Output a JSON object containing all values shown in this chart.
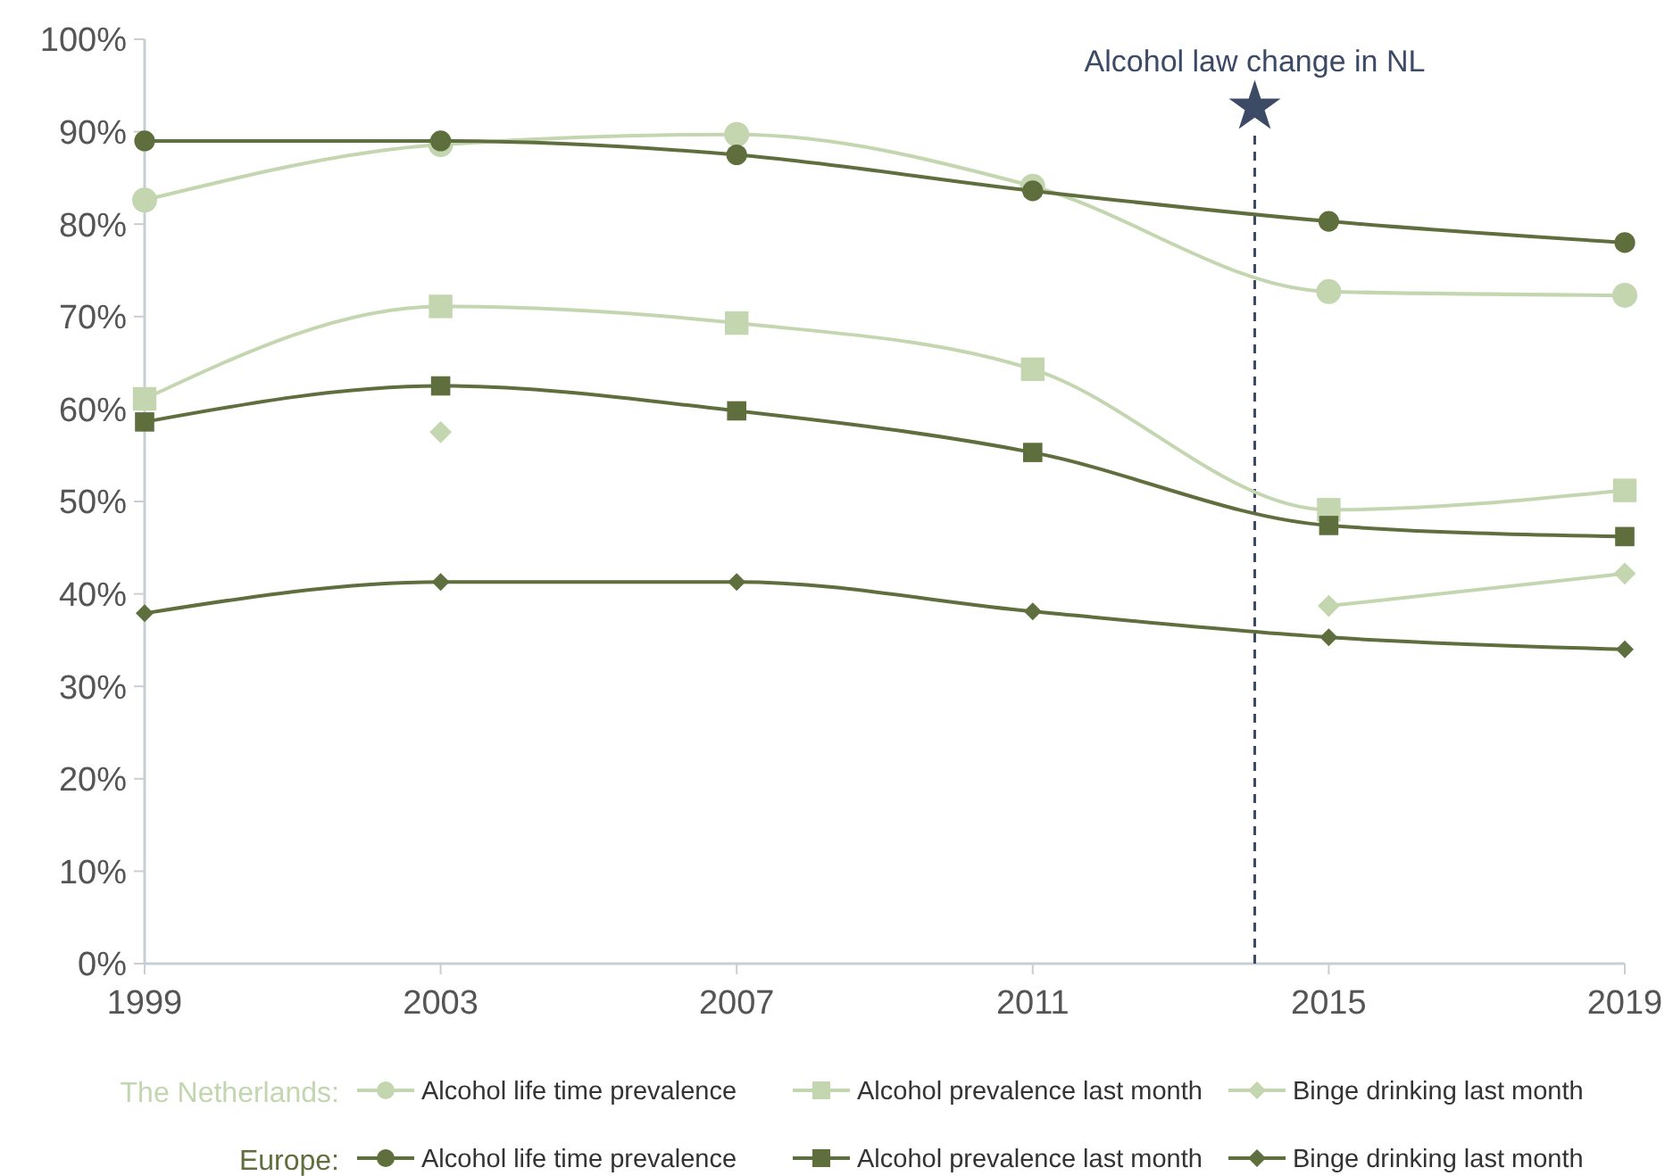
{
  "chart_data": {
    "type": "line",
    "x": [
      1999,
      2003,
      2007,
      2011,
      2015,
      2019
    ],
    "xlim": [
      1999,
      2019
    ],
    "xticks": [
      1999,
      2003,
      2007,
      2011,
      2015,
      2019
    ],
    "ylim": [
      0,
      100
    ],
    "yticks": [
      {
        "value": 0,
        "label": "0%"
      },
      {
        "value": 10,
        "label": "10%"
      },
      {
        "value": 20,
        "label": "20%"
      },
      {
        "value": 30,
        "label": "30%"
      },
      {
        "value": 40,
        "label": "40%"
      },
      {
        "value": 50,
        "label": "50%"
      },
      {
        "value": 60,
        "label": "60%"
      },
      {
        "value": 70,
        "label": "70%"
      },
      {
        "value": 80,
        "label": "80%"
      },
      {
        "value": 90,
        "label": "90%"
      },
      {
        "value": 100,
        "label": "100%"
      }
    ],
    "grid": false,
    "legend": "bottom",
    "annotations": [
      "The Netherlands:",
      "Europe:"
    ],
    "series": [
      {
        "name": "Alcohol life time prevalence",
        "color": "#c3d6b0",
        "marker": "circle",
        "values": [
          82.6,
          88.6,
          89.7,
          84.1,
          72.7,
          72.3
        ]
      },
      {
        "name": "Alcohol prevalence last month",
        "color": "#c3d6b0",
        "marker": "square",
        "values": [
          61.1,
          71.1,
          69.3,
          64.3,
          49.1,
          51.2
        ]
      },
      {
        "name": "Binge drinking last month",
        "color": "#c3d6b0",
        "marker": "diamond",
        "values": [
          null,
          57.5,
          null,
          null,
          38.7,
          42.2
        ]
      },
      {
        "name": "Alcohol life time prevalence",
        "color": "#5e6e3c",
        "marker": "circle",
        "values": [
          89.0,
          89.0,
          87.5,
          83.6,
          80.3,
          78.0
        ]
      },
      {
        "name": "Alcohol prevalence last month",
        "color": "#5e6e3c",
        "marker": "square",
        "values": [
          58.6,
          62.5,
          59.8,
          55.3,
          47.4,
          46.2
        ]
      },
      {
        "name": "Binge drinking last month",
        "color": "#5e6e3c",
        "marker": "diamond",
        "values": [
          37.9,
          41.3,
          41.3,
          38.1,
          35.3,
          34.0
        ]
      }
    ],
    "ref_lines": [
      {
        "axis": "x",
        "value": 2014,
        "label": "Alcohol law change in NL",
        "color": "#3c4a66",
        "line_style": "dashed"
      }
    ]
  }
}
